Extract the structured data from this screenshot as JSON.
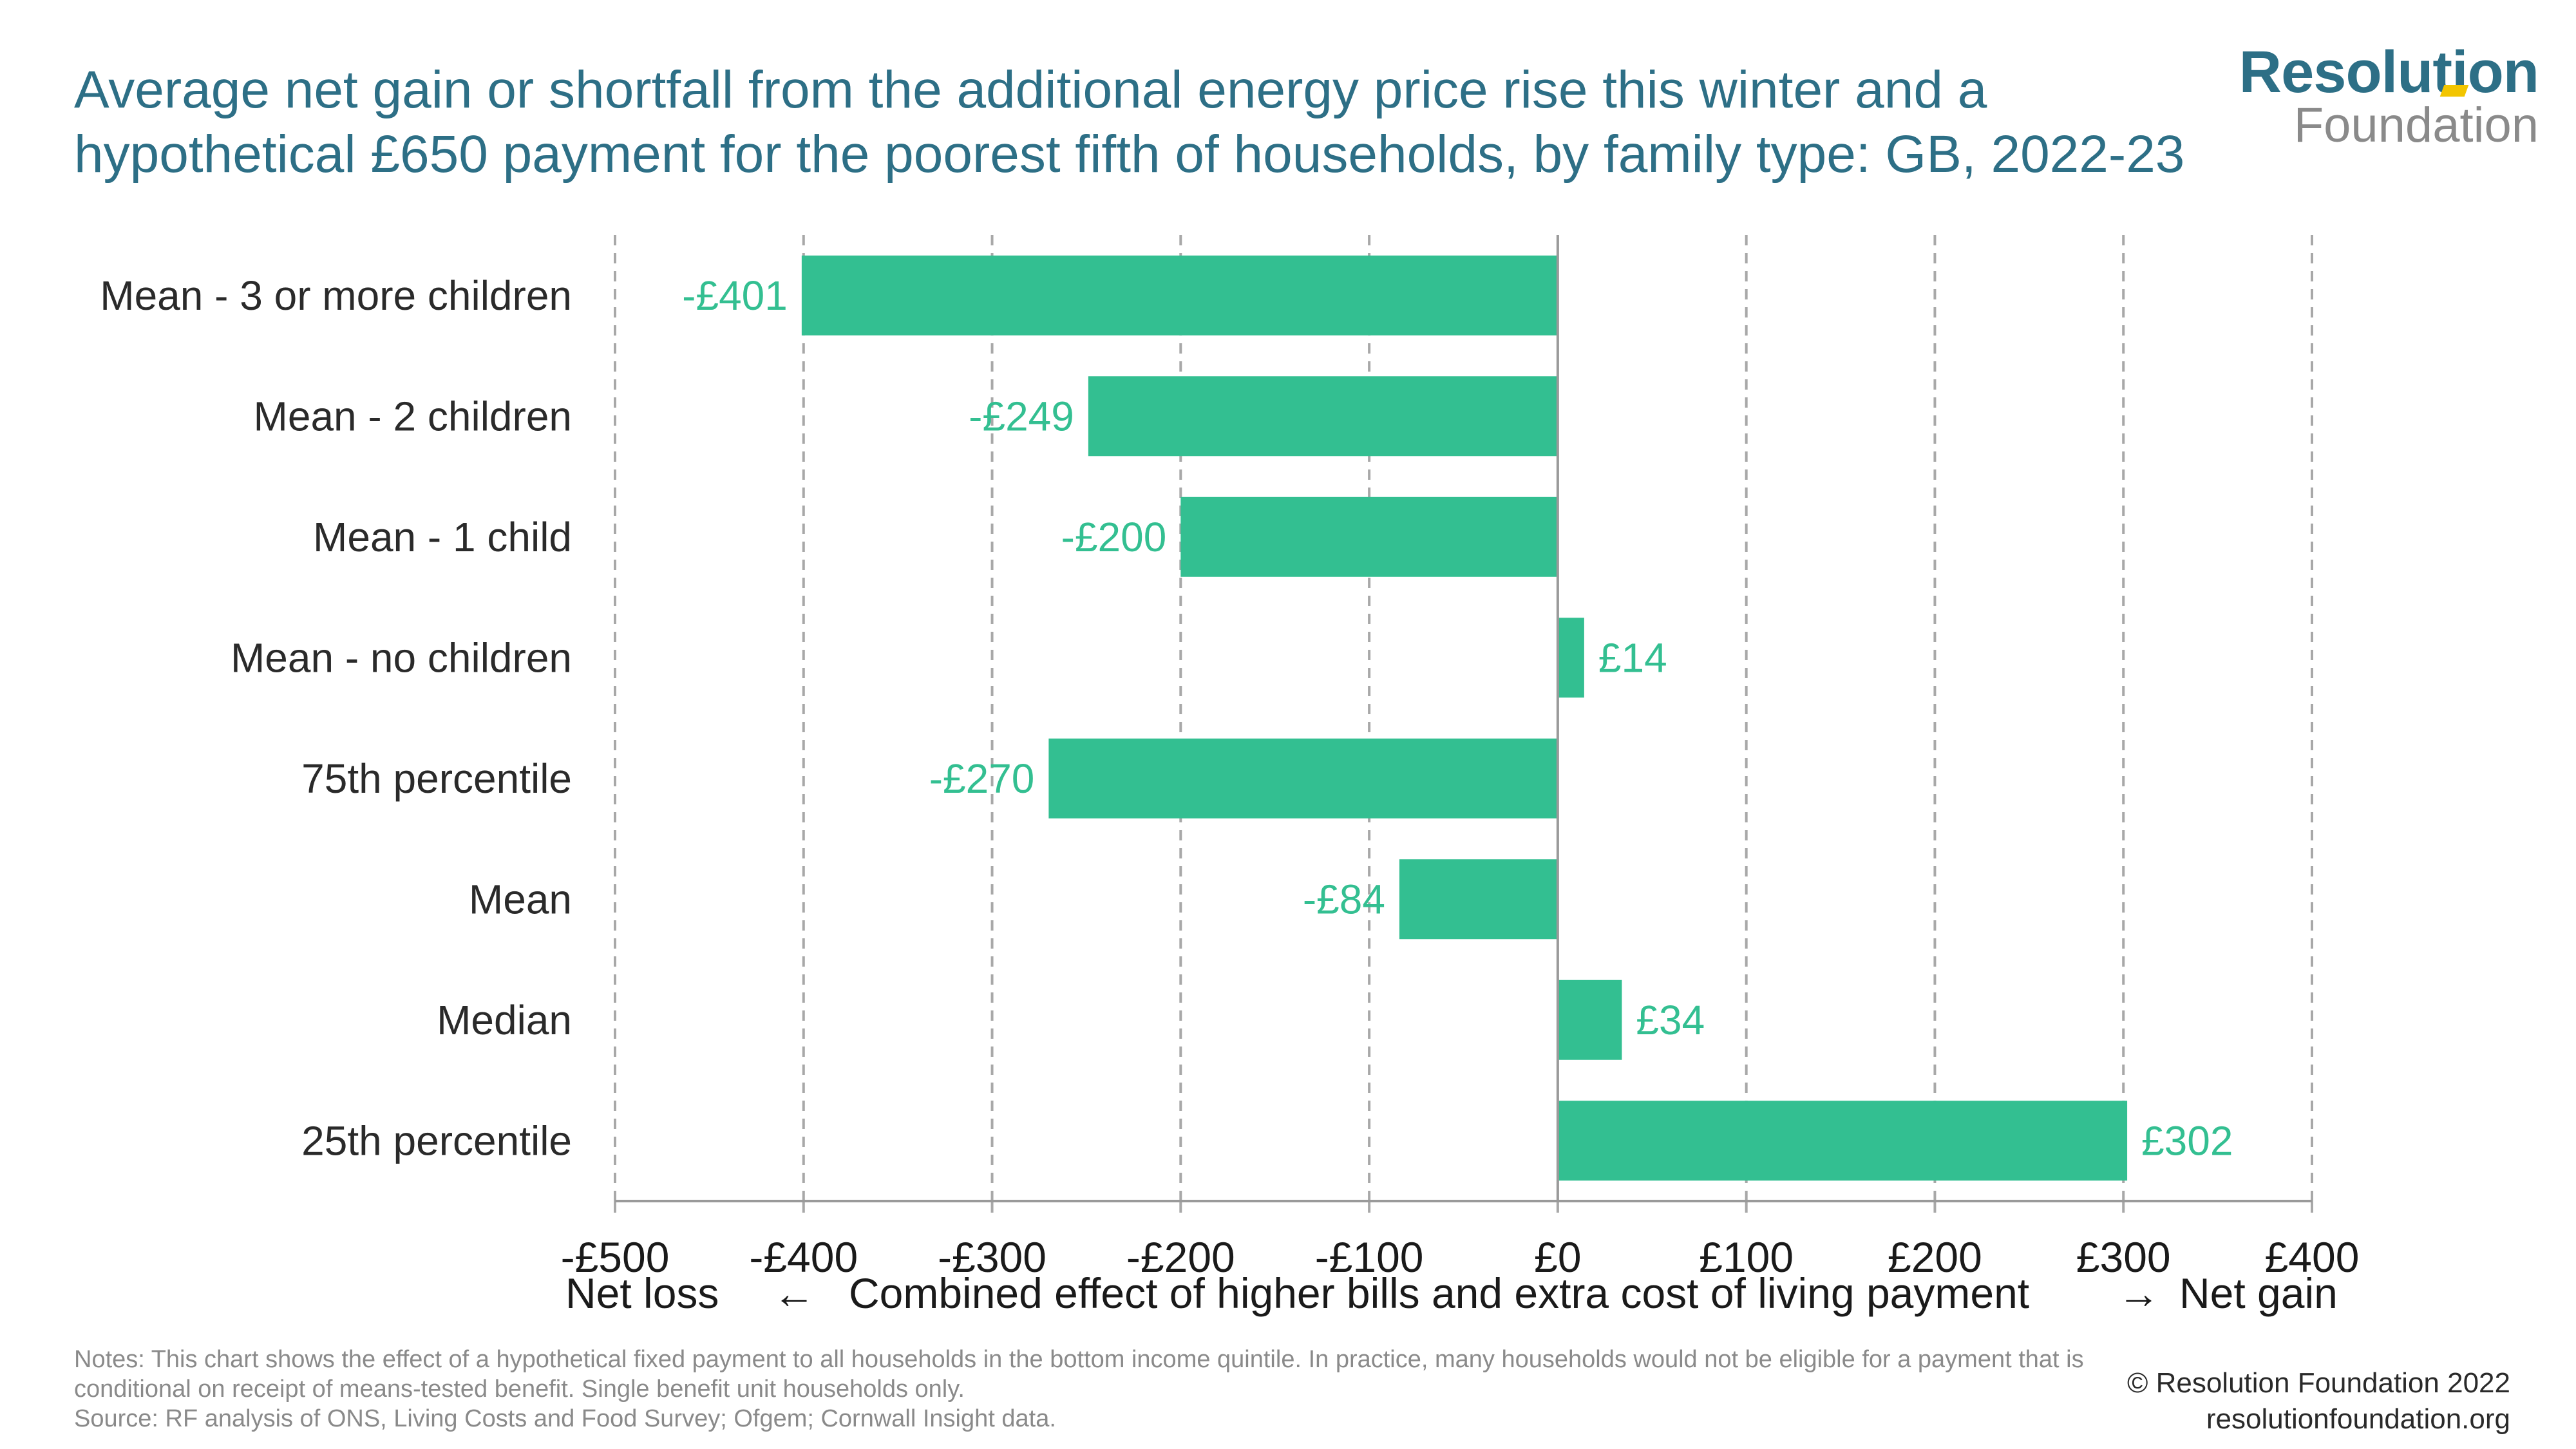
{
  "header": {
    "title": "Average net gain or shortfall from the additional energy price rise this winter and a hypothetical £650 payment for the poorest fifth of households, by family type: GB, 2022-23"
  },
  "logo": {
    "main": "Resolution",
    "sub": "Foundation"
  },
  "colors": {
    "bar": "#33bf91",
    "title": "#2d6f86",
    "grid": "#a8a8a8",
    "label": "#33bf91"
  },
  "chart_data": {
    "type": "bar",
    "orientation": "horizontal",
    "categories": [
      "Mean - 3 or more children",
      "Mean - 2 children",
      "Mean - 1 child",
      "Mean - no children",
      "75th percentile",
      "Mean",
      "Median",
      "25th percentile"
    ],
    "values": [
      -401,
      -249,
      -200,
      14,
      -270,
      -84,
      34,
      302
    ],
    "value_labels": [
      "-£401",
      "-£249",
      "-£200",
      "£14",
      "-£270",
      "-£84",
      "£34",
      "£302"
    ],
    "xlim": [
      -500,
      400
    ],
    "xticks": [
      -500,
      -400,
      -300,
      -200,
      -100,
      0,
      100,
      200,
      300,
      400
    ],
    "xtick_labels": [
      "-£500",
      "-£400",
      "-£300",
      "-£200",
      "-£100",
      "£0",
      "£100",
      "£200",
      "£300",
      "£400"
    ],
    "xlabel": "Combined effect of higher bills and extra cost of living payment",
    "xlabel_left": "Net loss",
    "xlabel_left_arrow": "←",
    "xlabel_right_arrow": "→",
    "xlabel_right": "Net gain",
    "grid": "vertical dashed"
  },
  "footer": {
    "notes": "Notes: This chart shows the effect of a hypothetical fixed payment to all households in the bottom income quintile. In practice, many households would not be eligible for a payment that is conditional on receipt of means-tested benefit. Single benefit unit households only.",
    "source": "Source: RF analysis of ONS, Living Costs and Food Survey; Ofgem; Cornwall Insight data.",
    "copyright": "© Resolution Foundation 2022",
    "website": "resolutionfoundation.org"
  }
}
